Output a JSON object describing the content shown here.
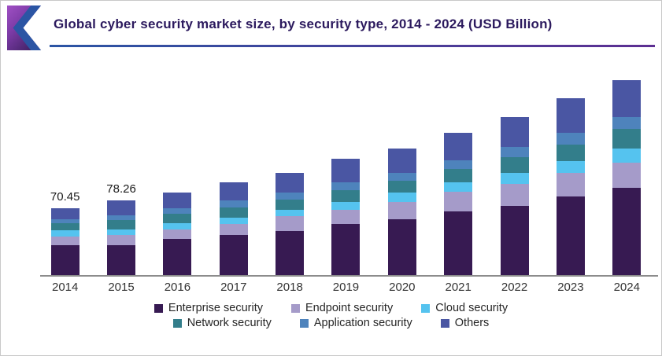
{
  "header": {
    "title": "Global cyber security market size, by security type, 2014 - 2024 (USD Billion)"
  },
  "colors": {
    "title_text": "#2c1a5e",
    "rule_gradient_left": "#2b55a4",
    "rule_gradient_right": "#5d2f92",
    "axis_line": "#8c8c8c"
  },
  "chart_data": {
    "type": "bar",
    "stacked": true,
    "title": "Global cyber security market size, by security type, 2014 - 2024 (USD Billion)",
    "unit": "USD Billion",
    "xlabel": "",
    "ylabel": "",
    "grid": false,
    "legend_position": "bottom",
    "ylim": [
      0,
      210
    ],
    "categories": [
      "2014",
      "2015",
      "2016",
      "2017",
      "2018",
      "2019",
      "2020",
      "2021",
      "2022",
      "2023",
      "2024"
    ],
    "series": [
      {
        "name": "Enterprise security",
        "color": "#371a52",
        "values": [
          31.0,
          31.3,
          37.9,
          42.0,
          46.1,
          53.5,
          58.5,
          66.7,
          72.5,
          82.4,
          91.4
        ]
      },
      {
        "name": "Endpoint security",
        "color": "#a59bc9",
        "values": [
          9.1,
          10.7,
          9.9,
          11.5,
          15.7,
          14.8,
          18.1,
          20.6,
          23.1,
          24.7,
          26.4
        ]
      },
      {
        "name": "Cloud security",
        "color": "#55c3ef",
        "values": [
          6.6,
          5.8,
          6.6,
          6.6,
          6.6,
          8.2,
          9.9,
          9.9,
          11.5,
          12.4,
          14.8
        ]
      },
      {
        "name": "Network security",
        "color": "#337e8b",
        "values": [
          7.4,
          9.9,
          9.9,
          10.7,
          10.7,
          12.4,
          12.4,
          14.0,
          16.5,
          17.3,
          20.6
        ]
      },
      {
        "name": "Application security",
        "color": "#4e83bc",
        "values": [
          4.9,
          4.9,
          5.8,
          7.4,
          7.4,
          8.2,
          8.2,
          9.1,
          10.7,
          12.4,
          12.4
        ]
      },
      {
        "name": "Others",
        "color": "#4a56a3",
        "values": [
          11.5,
          15.7,
          16.5,
          18.9,
          20.6,
          24.7,
          25.5,
          28.8,
          31.3,
          36.3,
          38.7
        ]
      }
    ],
    "totals": [
      70.45,
      78.26,
      86.6,
      97.1,
      107.1,
      121.8,
      132.6,
      149.1,
      165.6,
      185.5,
      204.3
    ],
    "bar_labels": [
      "70.45",
      "78.26",
      "",
      "",
      "",
      "",
      "",
      "",
      "",
      "",
      ""
    ],
    "legend_rows": [
      [
        "Enterprise security",
        "Endpoint security",
        "Cloud security"
      ],
      [
        "Network security",
        "Application security",
        "Others"
      ]
    ]
  }
}
